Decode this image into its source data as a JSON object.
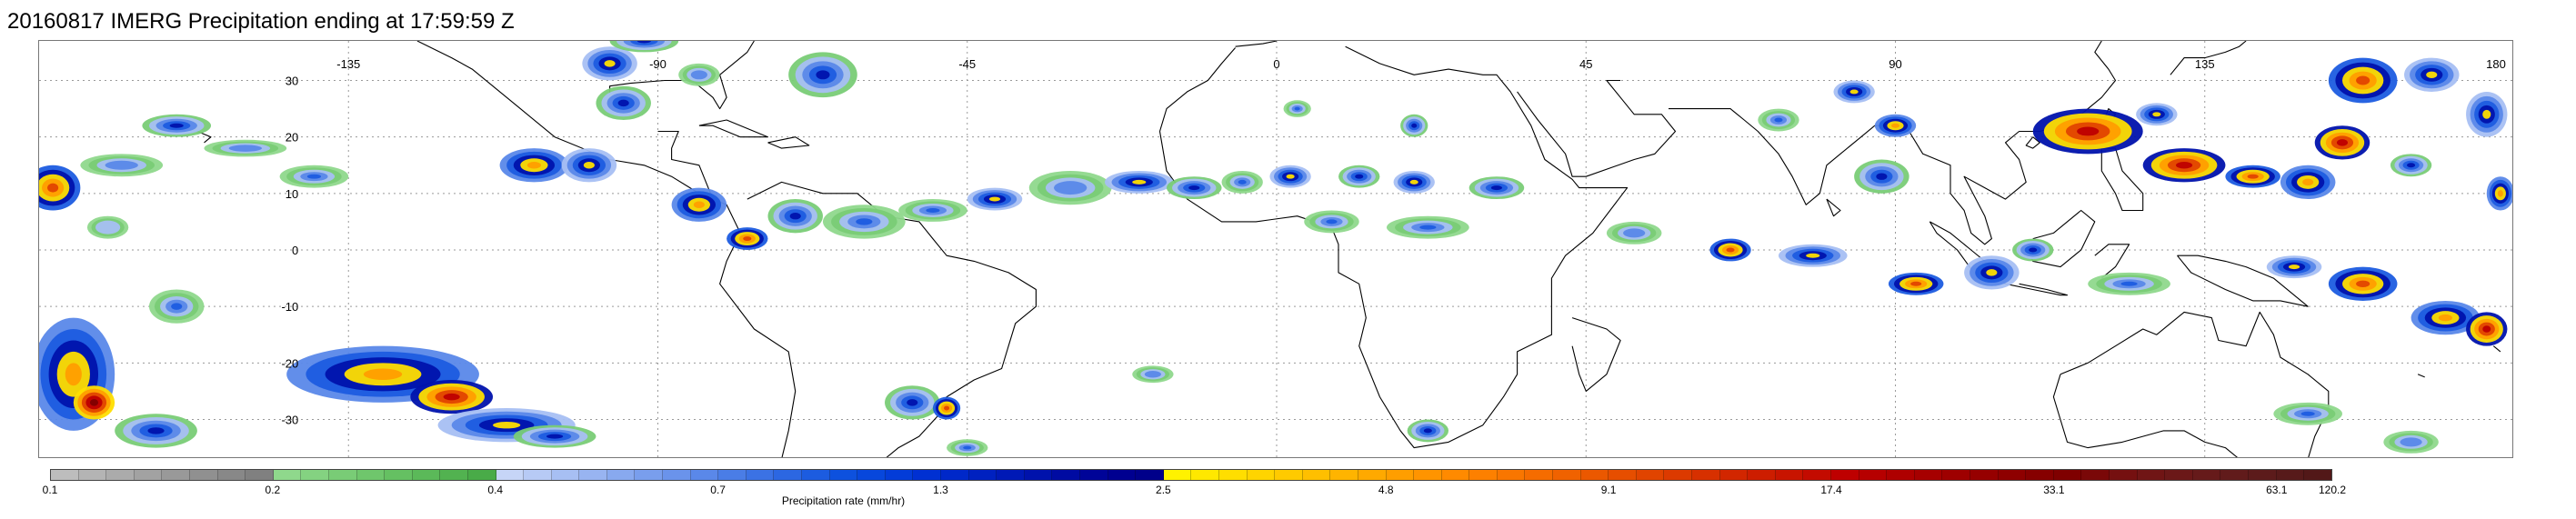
{
  "title": "20160817 IMERG Precipitation ending at 17:59:59 Z",
  "map": {
    "projection": "equirectangular",
    "lon_range": [
      -180,
      180
    ],
    "lat_range": [
      -37,
      37
    ],
    "lon_ticks": [
      {
        "value": -135,
        "label": "-135"
      },
      {
        "value": -90,
        "label": "-90"
      },
      {
        "value": -45,
        "label": "-45"
      },
      {
        "value": 0,
        "label": "0"
      },
      {
        "value": 45,
        "label": "45"
      },
      {
        "value": 90,
        "label": "90"
      },
      {
        "value": 135,
        "label": "135"
      },
      {
        "value": 180,
        "label": "180"
      }
    ],
    "lat_ticks": [
      {
        "value": 30,
        "label": "30"
      },
      {
        "value": 20,
        "label": "20"
      },
      {
        "value": 10,
        "label": "10"
      },
      {
        "value": 0,
        "label": "0"
      },
      {
        "value": -10,
        "label": "-10"
      },
      {
        "value": -20,
        "label": "-20"
      },
      {
        "value": -30,
        "label": "-30"
      }
    ],
    "gridlines": "dotted",
    "coastline_color": "#000000",
    "precip_cells": [
      {
        "lon": -178,
        "lat": 11,
        "rlon": 4,
        "rlat": 4,
        "level": 8
      },
      {
        "lon": -168,
        "lat": 15,
        "rlon": 6,
        "rlat": 2,
        "level": 3
      },
      {
        "lon": -160,
        "lat": 22,
        "rlon": 5,
        "rlat": 2,
        "level": 5
      },
      {
        "lon": -150,
        "lat": 18,
        "rlon": 6,
        "rlat": 1.5,
        "level": 3
      },
      {
        "lon": -140,
        "lat": 13,
        "rlon": 5,
        "rlat": 2,
        "level": 4
      },
      {
        "lon": -170,
        "lat": 4,
        "rlon": 3,
        "rlat": 2,
        "level": 2
      },
      {
        "lon": -175,
        "lat": -22,
        "rlon": 6,
        "rlat": 10,
        "level": 7
      },
      {
        "lon": -172,
        "lat": -27,
        "rlon": 3,
        "rlat": 3,
        "level": 10
      },
      {
        "lon": -163,
        "lat": -32,
        "rlon": 6,
        "rlat": 3,
        "level": 5
      },
      {
        "lon": -160,
        "lat": -10,
        "rlon": 4,
        "rlat": 3,
        "level": 4
      },
      {
        "lon": -130,
        "lat": -22,
        "rlon": 14,
        "rlat": 5,
        "level": 7
      },
      {
        "lon": -120,
        "lat": -26,
        "rlon": 6,
        "rlat": 3,
        "level": 9
      },
      {
        "lon": -112,
        "lat": -31,
        "rlon": 10,
        "rlat": 3,
        "level": 6
      },
      {
        "lon": -105,
        "lat": -33,
        "rlon": 6,
        "rlat": 2,
        "level": 5
      },
      {
        "lon": -108,
        "lat": 15,
        "rlon": 5,
        "rlat": 3,
        "level": 7
      },
      {
        "lon": -100,
        "lat": 15,
        "rlon": 4,
        "rlat": 3,
        "level": 6
      },
      {
        "lon": -95,
        "lat": 26,
        "rlon": 4,
        "rlat": 3,
        "level": 5
      },
      {
        "lon": -97,
        "lat": 33,
        "rlon": 4,
        "rlat": 3,
        "level": 6
      },
      {
        "lon": -92,
        "lat": 37,
        "rlon": 5,
        "rlat": 2,
        "level": 5
      },
      {
        "lon": -84,
        "lat": 8,
        "rlon": 4,
        "rlat": 3,
        "level": 7
      },
      {
        "lon": -77,
        "lat": 2,
        "rlon": 3,
        "rlat": 2,
        "level": 8
      },
      {
        "lon": -70,
        "lat": 6,
        "rlon": 4,
        "rlat": 3,
        "level": 5
      },
      {
        "lon": -60,
        "lat": 5,
        "rlon": 6,
        "rlat": 3,
        "level": 4
      },
      {
        "lon": -66,
        "lat": 31,
        "rlon": 5,
        "rlat": 4,
        "level": 5
      },
      {
        "lon": -84,
        "lat": 31,
        "rlon": 3,
        "rlat": 2,
        "level": 3
      },
      {
        "lon": -50,
        "lat": 7,
        "rlon": 5,
        "rlat": 2,
        "level": 4
      },
      {
        "lon": -41,
        "lat": 9,
        "rlon": 4,
        "rlat": 2,
        "level": 6
      },
      {
        "lon": -53,
        "lat": -27,
        "rlon": 4,
        "rlat": 3,
        "level": 5
      },
      {
        "lon": -48,
        "lat": -28,
        "rlon": 2,
        "rlat": 2,
        "level": 8
      },
      {
        "lon": -30,
        "lat": 11,
        "rlon": 6,
        "rlat": 3,
        "level": 3
      },
      {
        "lon": -20,
        "lat": 12,
        "rlon": 5,
        "rlat": 2,
        "level": 6
      },
      {
        "lon": -12,
        "lat": 11,
        "rlon": 4,
        "rlat": 2,
        "level": 5
      },
      {
        "lon": -5,
        "lat": 12,
        "rlon": 3,
        "rlat": 2,
        "level": 4
      },
      {
        "lon": 2,
        "lat": 13,
        "rlon": 3,
        "rlat": 2,
        "level": 6
      },
      {
        "lon": 12,
        "lat": 13,
        "rlon": 3,
        "rlat": 2,
        "level": 5
      },
      {
        "lon": 20,
        "lat": 12,
        "rlon": 3,
        "rlat": 2,
        "level": 6
      },
      {
        "lon": 32,
        "lat": 11,
        "rlon": 4,
        "rlat": 2,
        "level": 5
      },
      {
        "lon": 8,
        "lat": 5,
        "rlon": 4,
        "rlat": 2,
        "level": 4
      },
      {
        "lon": 22,
        "lat": 4,
        "rlon": 6,
        "rlat": 2,
        "level": 4
      },
      {
        "lon": 20,
        "lat": 22,
        "rlon": 2,
        "rlat": 2,
        "level": 5
      },
      {
        "lon": 3,
        "lat": 25,
        "rlon": 2,
        "rlat": 1.5,
        "level": 4
      },
      {
        "lon": 52,
        "lat": 3,
        "rlon": 4,
        "rlat": 2,
        "level": 3
      },
      {
        "lon": 66,
        "lat": 0,
        "rlon": 3,
        "rlat": 2,
        "level": 8
      },
      {
        "lon": 78,
        "lat": -1,
        "rlon": 5,
        "rlat": 2,
        "level": 6
      },
      {
        "lon": 88,
        "lat": 13,
        "rlon": 4,
        "rlat": 3,
        "level": 5
      },
      {
        "lon": 90,
        "lat": 22,
        "rlon": 3,
        "rlat": 2,
        "level": 7
      },
      {
        "lon": 84,
        "lat": 28,
        "rlon": 3,
        "rlat": 2,
        "level": 6
      },
      {
        "lon": 73,
        "lat": 23,
        "rlon": 3,
        "rlat": 2,
        "level": 4
      },
      {
        "lon": 93,
        "lat": -6,
        "rlon": 4,
        "rlat": 2,
        "level": 8
      },
      {
        "lon": 104,
        "lat": -4,
        "rlon": 4,
        "rlat": 3,
        "level": 6
      },
      {
        "lon": 110,
        "lat": 0,
        "rlon": 3,
        "rlat": 2,
        "level": 5
      },
      {
        "lon": 118,
        "lat": 21,
        "rlon": 8,
        "rlat": 4,
        "level": 9
      },
      {
        "lon": 128,
        "lat": 24,
        "rlon": 3,
        "rlat": 2,
        "level": 6
      },
      {
        "lon": 132,
        "lat": 15,
        "rlon": 6,
        "rlat": 3,
        "level": 9
      },
      {
        "lon": 142,
        "lat": 13,
        "rlon": 4,
        "rlat": 2,
        "level": 8
      },
      {
        "lon": 150,
        "lat": 12,
        "rlon": 4,
        "rlat": 3,
        "level": 7
      },
      {
        "lon": 155,
        "lat": 19,
        "rlon": 4,
        "rlat": 3,
        "level": 9
      },
      {
        "lon": 158,
        "lat": 30,
        "rlon": 5,
        "rlat": 4,
        "level": 8
      },
      {
        "lon": 168,
        "lat": 31,
        "rlon": 4,
        "rlat": 3,
        "level": 6
      },
      {
        "lon": 176,
        "lat": 24,
        "rlon": 3,
        "rlat": 4,
        "level": 6
      },
      {
        "lon": 178,
        "lat": 10,
        "rlon": 2,
        "rlat": 3,
        "level": 7
      },
      {
        "lon": 165,
        "lat": 15,
        "rlon": 3,
        "rlat": 2,
        "level": 5
      },
      {
        "lon": 148,
        "lat": -3,
        "rlon": 4,
        "rlat": 2,
        "level": 6
      },
      {
        "lon": 158,
        "lat": -6,
        "rlon": 5,
        "rlat": 3,
        "level": 8
      },
      {
        "lon": 170,
        "lat": -12,
        "rlon": 5,
        "rlat": 3,
        "level": 7
      },
      {
        "lon": 176,
        "lat": -14,
        "rlon": 3,
        "rlat": 3,
        "level": 9
      },
      {
        "lon": 124,
        "lat": -6,
        "rlon": 6,
        "rlat": 2,
        "level": 4
      },
      {
        "lon": 150,
        "lat": -29,
        "rlon": 5,
        "rlat": 2,
        "level": 4
      },
      {
        "lon": 165,
        "lat": -34,
        "rlon": 4,
        "rlat": 2,
        "level": 3
      },
      {
        "lon": 22,
        "lat": -32,
        "rlon": 3,
        "rlat": 2,
        "level": 5
      },
      {
        "lon": -45,
        "lat": -35,
        "rlon": 3,
        "rlat": 1.5,
        "level": 4
      },
      {
        "lon": -18,
        "lat": -22,
        "rlon": 3,
        "rlat": 1.5,
        "level": 3
      }
    ]
  },
  "colorbar": {
    "title": "Precipitation rate (mm/hr)",
    "colors": [
      "#bdbdbd",
      "#b4b4b4",
      "#ababab",
      "#a2a2a2",
      "#999999",
      "#909090",
      "#888888",
      "#808080",
      "#8fd88c",
      "#84d281",
      "#79cc76",
      "#6fc66c",
      "#65c062",
      "#5bb959",
      "#52b250",
      "#49ab48",
      "#c6d5f7",
      "#b7caf5",
      "#a7bff3",
      "#98b4f1",
      "#88a9ef",
      "#799eed",
      "#6a93eb",
      "#5a88e9",
      "#4a7de6",
      "#3b72e4",
      "#2c67e2",
      "#1c5ce0",
      "#0d51de",
      "#0747dc",
      "#033cd8",
      "#0030d2",
      "#0028c9",
      "#0021c0",
      "#0019b6",
      "#0012ac",
      "#000ba2",
      "#000498",
      "#000090",
      "#00008a",
      "#fff200",
      "#ffe800",
      "#ffde00",
      "#ffd400",
      "#ffca00",
      "#ffbf00",
      "#ffb400",
      "#ffa900",
      "#ff9e00",
      "#ff9400",
      "#ff8a00",
      "#fd8000",
      "#f97600",
      "#f56c00",
      "#f06200",
      "#eb5800",
      "#e64e00",
      "#e14400",
      "#dc3a00",
      "#d73000",
      "#d22600",
      "#cd1d00",
      "#c81400",
      "#c30b00",
      "#be0000",
      "#b60000",
      "#ae0000",
      "#a60000",
      "#9e0000",
      "#960000",
      "#8e0000",
      "#860000",
      "#7f0000",
      "#7a0808",
      "#751010",
      "#701515",
      "#6b1818",
      "#661a1a",
      "#611b1b",
      "#5c1b1b",
      "#571a1a",
      "#521818"
    ],
    "labels": [
      {
        "value": "0.1",
        "index": 0
      },
      {
        "value": "0.2",
        "index": 8
      },
      {
        "value": "0.4",
        "index": 16
      },
      {
        "value": "0.7",
        "index": 24
      },
      {
        "value": "1.3",
        "index": 32
      },
      {
        "value": "2.5",
        "index": 40
      },
      {
        "value": "4.8",
        "index": 48
      },
      {
        "value": "9.1",
        "index": 56
      },
      {
        "value": "17.4",
        "index": 64
      },
      {
        "value": "33.1",
        "index": 72
      },
      {
        "value": "63.1",
        "index": 80
      },
      {
        "value": "120.2",
        "index": 82
      }
    ]
  }
}
